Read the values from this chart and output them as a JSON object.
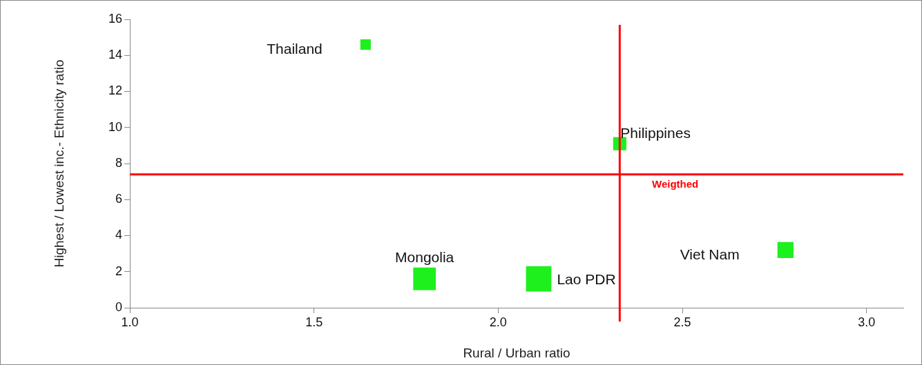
{
  "chart_data": {
    "type": "bubble",
    "xlabel": "Rural / Urban ratio",
    "ylabel": "Highest / Lowest inc.- Ethnicity ratio",
    "series": [
      {
        "name": "Thailand",
        "color": "#1ef01e",
        "x": [
          1.64
        ],
        "values": [
          14.6
        ],
        "sizes": [
          0.17
        ]
      },
      {
        "name": "Philippines",
        "color": "#1ef01e",
        "x": [
          2.33
        ],
        "values": [
          9.1
        ],
        "sizes": [
          0.27
        ]
      },
      {
        "name": "Mongolia",
        "color": "#1ef01e",
        "x": [
          1.8
        ],
        "values": [
          1.6
        ],
        "sizes": [
          0.79
        ]
      },
      {
        "name": "Lao PDR",
        "color": "#1ef01e",
        "x": [
          2.11
        ],
        "values": [
          1.6
        ],
        "sizes": [
          1
        ]
      },
      {
        "name": "Viet Nam",
        "color": "#1ef01e",
        "x": [
          2.78
        ],
        "values": [
          3.2
        ],
        "sizes": [
          0.4
        ]
      }
    ],
    "xlim": [
      1,
      3.1
    ],
    "xticks": [
      {
        "value": 1,
        "label": "1.0"
      },
      {
        "value": 1.5,
        "label": "1.5"
      },
      {
        "value": 2,
        "label": "2.0"
      },
      {
        "value": 2.5,
        "label": "2.5"
      },
      {
        "value": 3,
        "label": "3.0"
      }
    ],
    "ylim": [
      0,
      16
    ],
    "yticks": [
      0,
      2,
      4,
      6,
      8,
      10,
      12,
      14,
      16
    ],
    "ref_lines": [
      {
        "axis": "y",
        "value": 7.4,
        "label": "Weigthed",
        "color": "#ff0000"
      },
      {
        "axis": "x",
        "value": 2.33,
        "color": "#ff0000"
      }
    ],
    "marker": "square",
    "grid": false,
    "legend": false
  }
}
